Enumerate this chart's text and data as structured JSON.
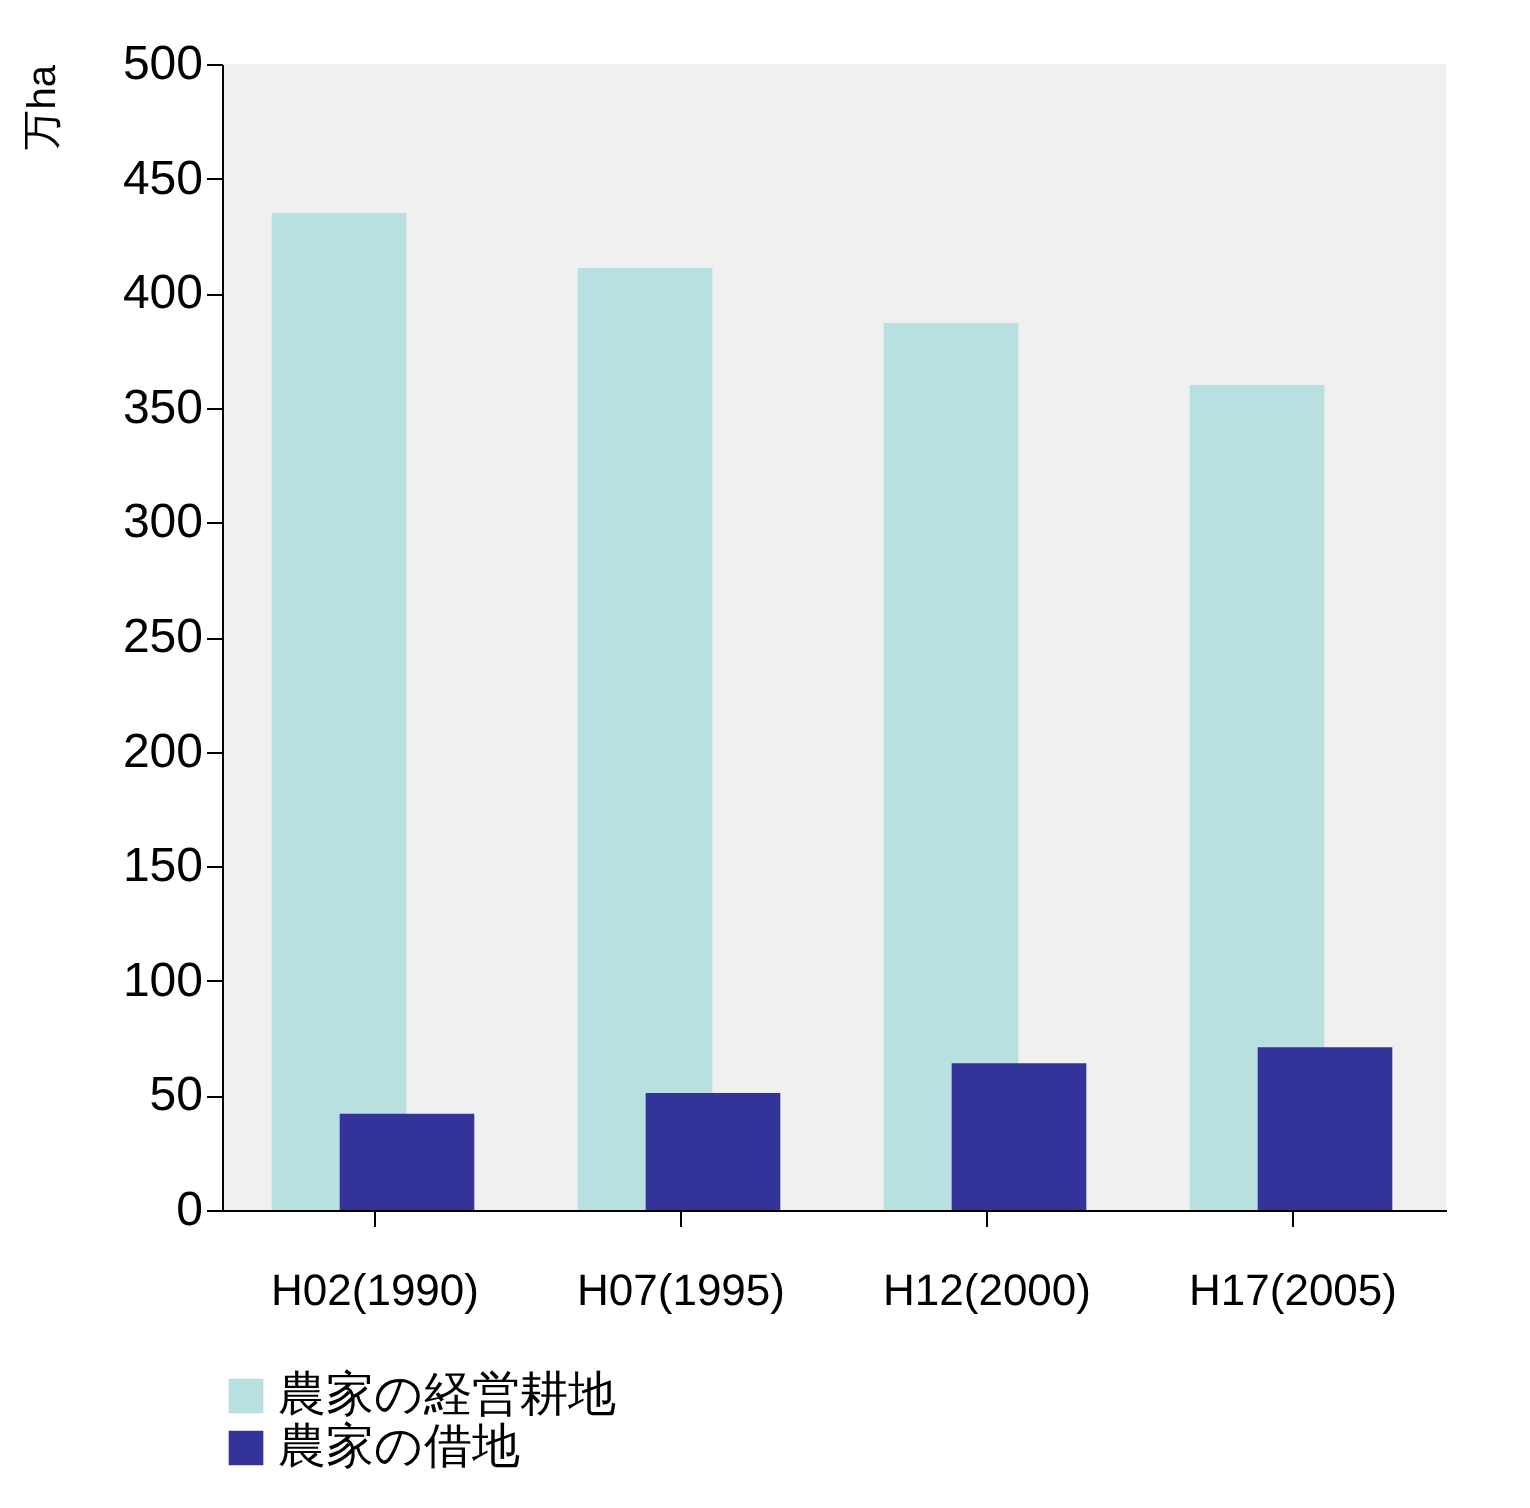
{
  "chart_data": {
    "type": "bar",
    "ylabel": "万ha",
    "categories": [
      "H02(1990)",
      "H07(1995)",
      "H12(2000)",
      "H17(2005)"
    ],
    "series": [
      {
        "name": "農家の経営耕地",
        "color": "#b9e0e0",
        "values": [
          435,
          411,
          387,
          360
        ]
      },
      {
        "name": "農家の借地",
        "color": "#333399",
        "values": [
          42,
          51,
          64,
          71
        ]
      }
    ],
    "ylim": [
      0,
      500
    ],
    "yticks": [
      0,
      50,
      100,
      150,
      200,
      250,
      300,
      350,
      400,
      450,
      500
    ],
    "grid": false,
    "legend": "bottom"
  }
}
